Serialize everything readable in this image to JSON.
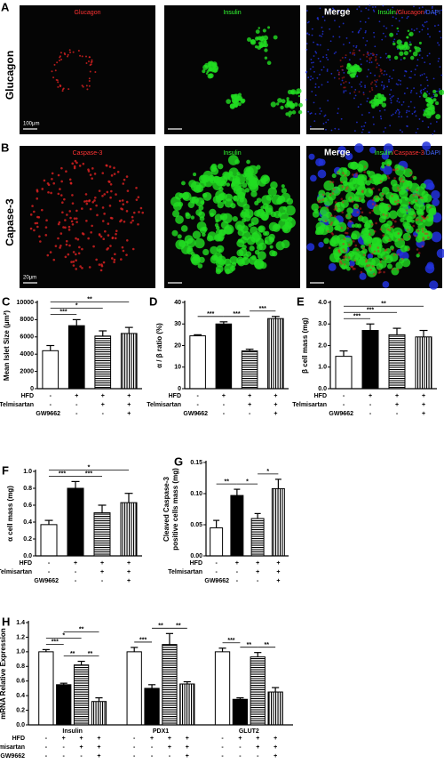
{
  "image_panels": [
    {
      "panel_label": "A",
      "row_label": "Glucagon",
      "titles": [
        "Glucagon",
        "Insulin",
        "Merge"
      ],
      "merge_legend": [
        {
          "text": "Insulin",
          "color": "#33ff33"
        },
        {
          "text": "/Glucagon",
          "color": "#ff3333"
        },
        {
          "text": "/DAPI",
          "color": "#4466ff"
        }
      ],
      "scale_bar": "100μm"
    },
    {
      "panel_label": "B",
      "row_label": "Capase-3",
      "titles": [
        "Caspase-3",
        "Insulin",
        "Merge"
      ],
      "merge_legend": [
        {
          "text": "Insulin",
          "color": "#33ff33"
        },
        {
          "text": "/Caspase-3",
          "color": "#ff3333"
        },
        {
          "text": "/DAPI",
          "color": "#4466ff"
        }
      ],
      "scale_bar": "20μm"
    }
  ],
  "chart_data": [
    {
      "type": "bar",
      "panel_label": "C",
      "ylabel": "Mean Islet Size (μm²)",
      "values": [
        4400,
        7300,
        6100,
        6400
      ],
      "errors": [
        600,
        700,
        600,
        700
      ],
      "fills": [
        "white",
        "black",
        "horizontal",
        "vertical"
      ],
      "ylim": [
        0,
        10000
      ],
      "yticks": [
        0,
        2000,
        4000,
        6000,
        8000,
        10000
      ],
      "conditions": [
        {
          "name": "HFD",
          "marks": [
            "-",
            "+",
            "+",
            "+"
          ]
        },
        {
          "name": "Telmisartan",
          "marks": [
            "-",
            "-",
            "+",
            "+"
          ]
        },
        {
          "name": "GW9662",
          "marks": [
            "-",
            "-",
            "-",
            "+"
          ]
        }
      ],
      "significance": [
        {
          "from": 0,
          "to": 1,
          "label": "***"
        },
        {
          "from": 0,
          "to": 2,
          "label": "*"
        },
        {
          "from": 0,
          "to": 3,
          "label": "**"
        }
      ]
    },
    {
      "type": "bar",
      "panel_label": "D",
      "ylabel": "α  / β  ratio (%)",
      "values": [
        24.5,
        30,
        17.5,
        32.5
      ],
      "errors": [
        0.5,
        1,
        0.8,
        1
      ],
      "fills": [
        "white",
        "black",
        "horizontal",
        "vertical"
      ],
      "ylim": [
        0,
        40
      ],
      "yticks": [
        0,
        10,
        20,
        30,
        40
      ],
      "conditions": [
        {
          "name": "HFD",
          "marks": [
            "-",
            "+",
            "+",
            "+"
          ]
        },
        {
          "name": "Telmisartan",
          "marks": [
            "-",
            "-",
            "+",
            "+"
          ]
        },
        {
          "name": "GW9662",
          "marks": [
            "-",
            "-",
            "-",
            "+"
          ]
        }
      ],
      "significance": [
        {
          "from": 0,
          "to": 1,
          "label": "***"
        },
        {
          "from": 1,
          "to": 2,
          "label": "***"
        },
        {
          "from": 2,
          "to": 3,
          "label": "***"
        }
      ]
    },
    {
      "type": "bar",
      "panel_label": "E",
      "ylabel": "β cell mass (mg)",
      "values": [
        1.5,
        2.7,
        2.5,
        2.4
      ],
      "errors": [
        0.25,
        0.3,
        0.3,
        0.3
      ],
      "fills": [
        "white",
        "black",
        "horizontal",
        "vertical"
      ],
      "ylim": [
        0,
        4
      ],
      "yticks": [
        {
          "value": 0,
          "label": "0.0"
        },
        {
          "value": 1,
          "label": "1.0"
        },
        {
          "value": 2,
          "label": "2.0"
        },
        {
          "value": 3,
          "label": "3.0"
        },
        {
          "value": 4,
          "label": "4.0"
        }
      ],
      "conditions": [
        {
          "name": "HFD",
          "marks": [
            "-",
            "+",
            "+",
            "+"
          ]
        },
        {
          "name": "Telmisartan",
          "marks": [
            "-",
            "-",
            "+",
            "+"
          ]
        },
        {
          "name": "GW9662",
          "marks": [
            "-",
            "-",
            "-",
            "+"
          ]
        }
      ],
      "significance": [
        {
          "from": 0,
          "to": 1,
          "label": "***"
        },
        {
          "from": 0,
          "to": 2,
          "label": "***"
        },
        {
          "from": 0,
          "to": 3,
          "label": "**"
        }
      ]
    },
    {
      "type": "bar",
      "panel_label": "F",
      "ylabel": "α  cell mass (mg)",
      "values": [
        0.37,
        0.8,
        0.51,
        0.63
      ],
      "errors": [
        0.05,
        0.08,
        0.09,
        0.11
      ],
      "fills": [
        "white",
        "black",
        "horizontal",
        "vertical"
      ],
      "ylim": [
        0,
        1
      ],
      "yticks": [
        {
          "value": 0,
          "label": "0.0"
        },
        0.2,
        0.4,
        0.6,
        0.8,
        {
          "value": 1,
          "label": "1.0"
        }
      ],
      "conditions": [
        {
          "name": "HFD",
          "marks": [
            "-",
            "+",
            "+",
            "+"
          ]
        },
        {
          "name": "Telmisartan",
          "marks": [
            "-",
            "-",
            "+",
            "+"
          ]
        },
        {
          "name": "GW9662",
          "marks": [
            "-",
            "-",
            "-",
            "+"
          ]
        }
      ],
      "significance": [
        {
          "from": 0,
          "to": 1,
          "label": "***"
        },
        {
          "from": 1,
          "to": 2,
          "label": "***"
        },
        {
          "from": 0,
          "to": 3,
          "label": "*"
        }
      ]
    },
    {
      "type": "bar",
      "panel_label": "G",
      "ylabel": [
        "Cleaved Caspase-3",
        "positive cells mass (mg)"
      ],
      "values": [
        0.045,
        0.097,
        0.06,
        0.108
      ],
      "errors": [
        0.012,
        0.01,
        0.008,
        0.015
      ],
      "fills": [
        "white",
        "black",
        "horizontal",
        "vertical"
      ],
      "ylim": [
        0,
        0.15
      ],
      "yticks": [
        {
          "value": 0,
          "label": "0.00"
        },
        0.05,
        {
          "value": 0.1,
          "label": "0.10"
        },
        0.15
      ],
      "conditions": [
        {
          "name": "HFD",
          "marks": [
            "-",
            "+",
            "+",
            "+"
          ]
        },
        {
          "name": "Telmisartan",
          "marks": [
            "-",
            "-",
            "+",
            "+"
          ]
        },
        {
          "name": "GW9662",
          "marks": [
            "-",
            "-",
            "-",
            "+"
          ]
        }
      ],
      "significance": [
        {
          "from": 0,
          "to": 1,
          "label": "**"
        },
        {
          "from": 1,
          "to": 2,
          "label": "*"
        },
        {
          "from": 2,
          "to": 3,
          "label": "*"
        }
      ]
    },
    {
      "type": "grouped_bar",
      "panel_label": "H",
      "ylabel": "mRNA Relative Expression",
      "groups": [
        "Insulin",
        "PDX1",
        "GLUT2"
      ],
      "series": [
        {
          "fill": "white",
          "values": [
            1.0,
            1.0,
            1.0
          ],
          "errors": [
            0.03,
            0.06,
            0.05
          ]
        },
        {
          "fill": "black",
          "values": [
            0.55,
            0.5,
            0.35
          ],
          "errors": [
            0.02,
            0.05,
            0.02
          ]
        },
        {
          "fill": "horizontal",
          "values": [
            0.82,
            1.1,
            0.93
          ],
          "errors": [
            0.05,
            0.15,
            0.06
          ]
        },
        {
          "fill": "vertical",
          "values": [
            0.32,
            0.56,
            0.45
          ],
          "errors": [
            0.05,
            0.03,
            0.06
          ]
        }
      ],
      "ylim": [
        0,
        1.4
      ],
      "yticks": [
        {
          "value": 0,
          "label": "0.0"
        },
        0.2,
        0.4,
        0.6,
        0.8,
        {
          "value": 1,
          "label": "1.0"
        },
        1.2,
        1.4
      ],
      "conditions": [
        {
          "name": "HFD",
          "marks": [
            "-",
            "+",
            "+",
            "+",
            "-",
            "+",
            "+",
            "+",
            "-",
            "+",
            "+",
            "+"
          ]
        },
        {
          "name": "Telmisartan",
          "marks": [
            "-",
            "-",
            "+",
            "+",
            "-",
            "-",
            "+",
            "+",
            "-",
            "-",
            "+",
            "+"
          ]
        },
        {
          "name": "GW9662",
          "marks": [
            "-",
            "-",
            "-",
            "+",
            "-",
            "-",
            "-",
            "+",
            "-",
            "-",
            "-",
            "+"
          ]
        }
      ],
      "significance": [
        {
          "from": 0,
          "to": 1,
          "label": "***"
        },
        {
          "from": 1,
          "to": 2,
          "label": "**"
        },
        {
          "from": 2,
          "to": 3,
          "label": "**"
        },
        {
          "from": 0,
          "to": 2,
          "label": "*"
        },
        {
          "from": 1,
          "to": 3,
          "label": "**"
        },
        {
          "from": 4,
          "to": 5,
          "label": "***"
        },
        {
          "from": 5,
          "to": 6,
          "label": "**"
        },
        {
          "from": 6,
          "to": 7,
          "label": "**"
        },
        {
          "from": 8,
          "to": 9,
          "label": "***"
        },
        {
          "from": 9,
          "to": 10,
          "label": "**"
        },
        {
          "from": 10,
          "to": 11,
          "label": "**"
        }
      ]
    }
  ]
}
